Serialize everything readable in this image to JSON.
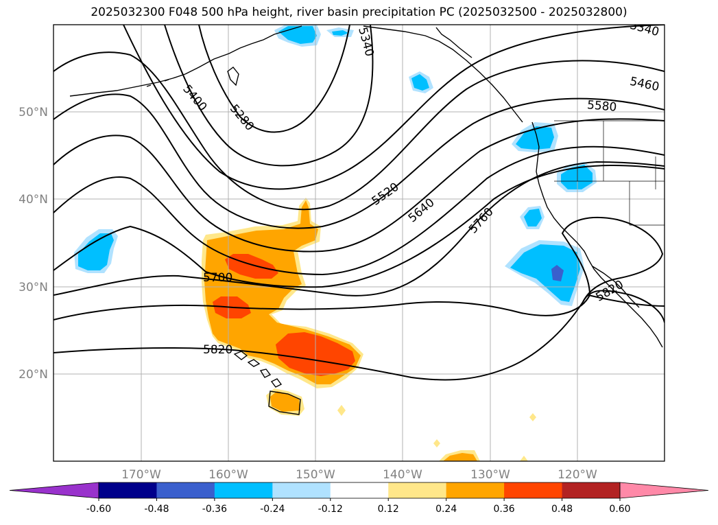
{
  "title": "2025032300 F048 500 hPa height, river basin precipitation PC (2025032500 - 2025032800)",
  "lat_labels": [
    "50°N",
    "40°N",
    "30°N",
    "20°N"
  ],
  "lon_labels": [
    "170°W",
    "160°W",
    "150°W",
    "140°W",
    "130°W",
    "120°W"
  ],
  "contour_labels": [
    "5340",
    "5340",
    "5400",
    "5280",
    "5460",
    "5580",
    "5520",
    "5640",
    "5760",
    "5700",
    "5820",
    "5820"
  ],
  "colorbar": {
    "ticks": [
      "-0.60",
      "-0.48",
      "-0.36",
      "-0.24",
      "-0.12",
      "0.12",
      "0.24",
      "0.36",
      "0.48",
      "0.60"
    ],
    "colors": [
      "#9932cc",
      "#00008b",
      "#3a5fcd",
      "#00bfff",
      "#b0e2ff",
      "#ffffff",
      "#ffe78a",
      "#ffa500",
      "#ff4500",
      "#b22222",
      "#ff89a8"
    ]
  }
}
